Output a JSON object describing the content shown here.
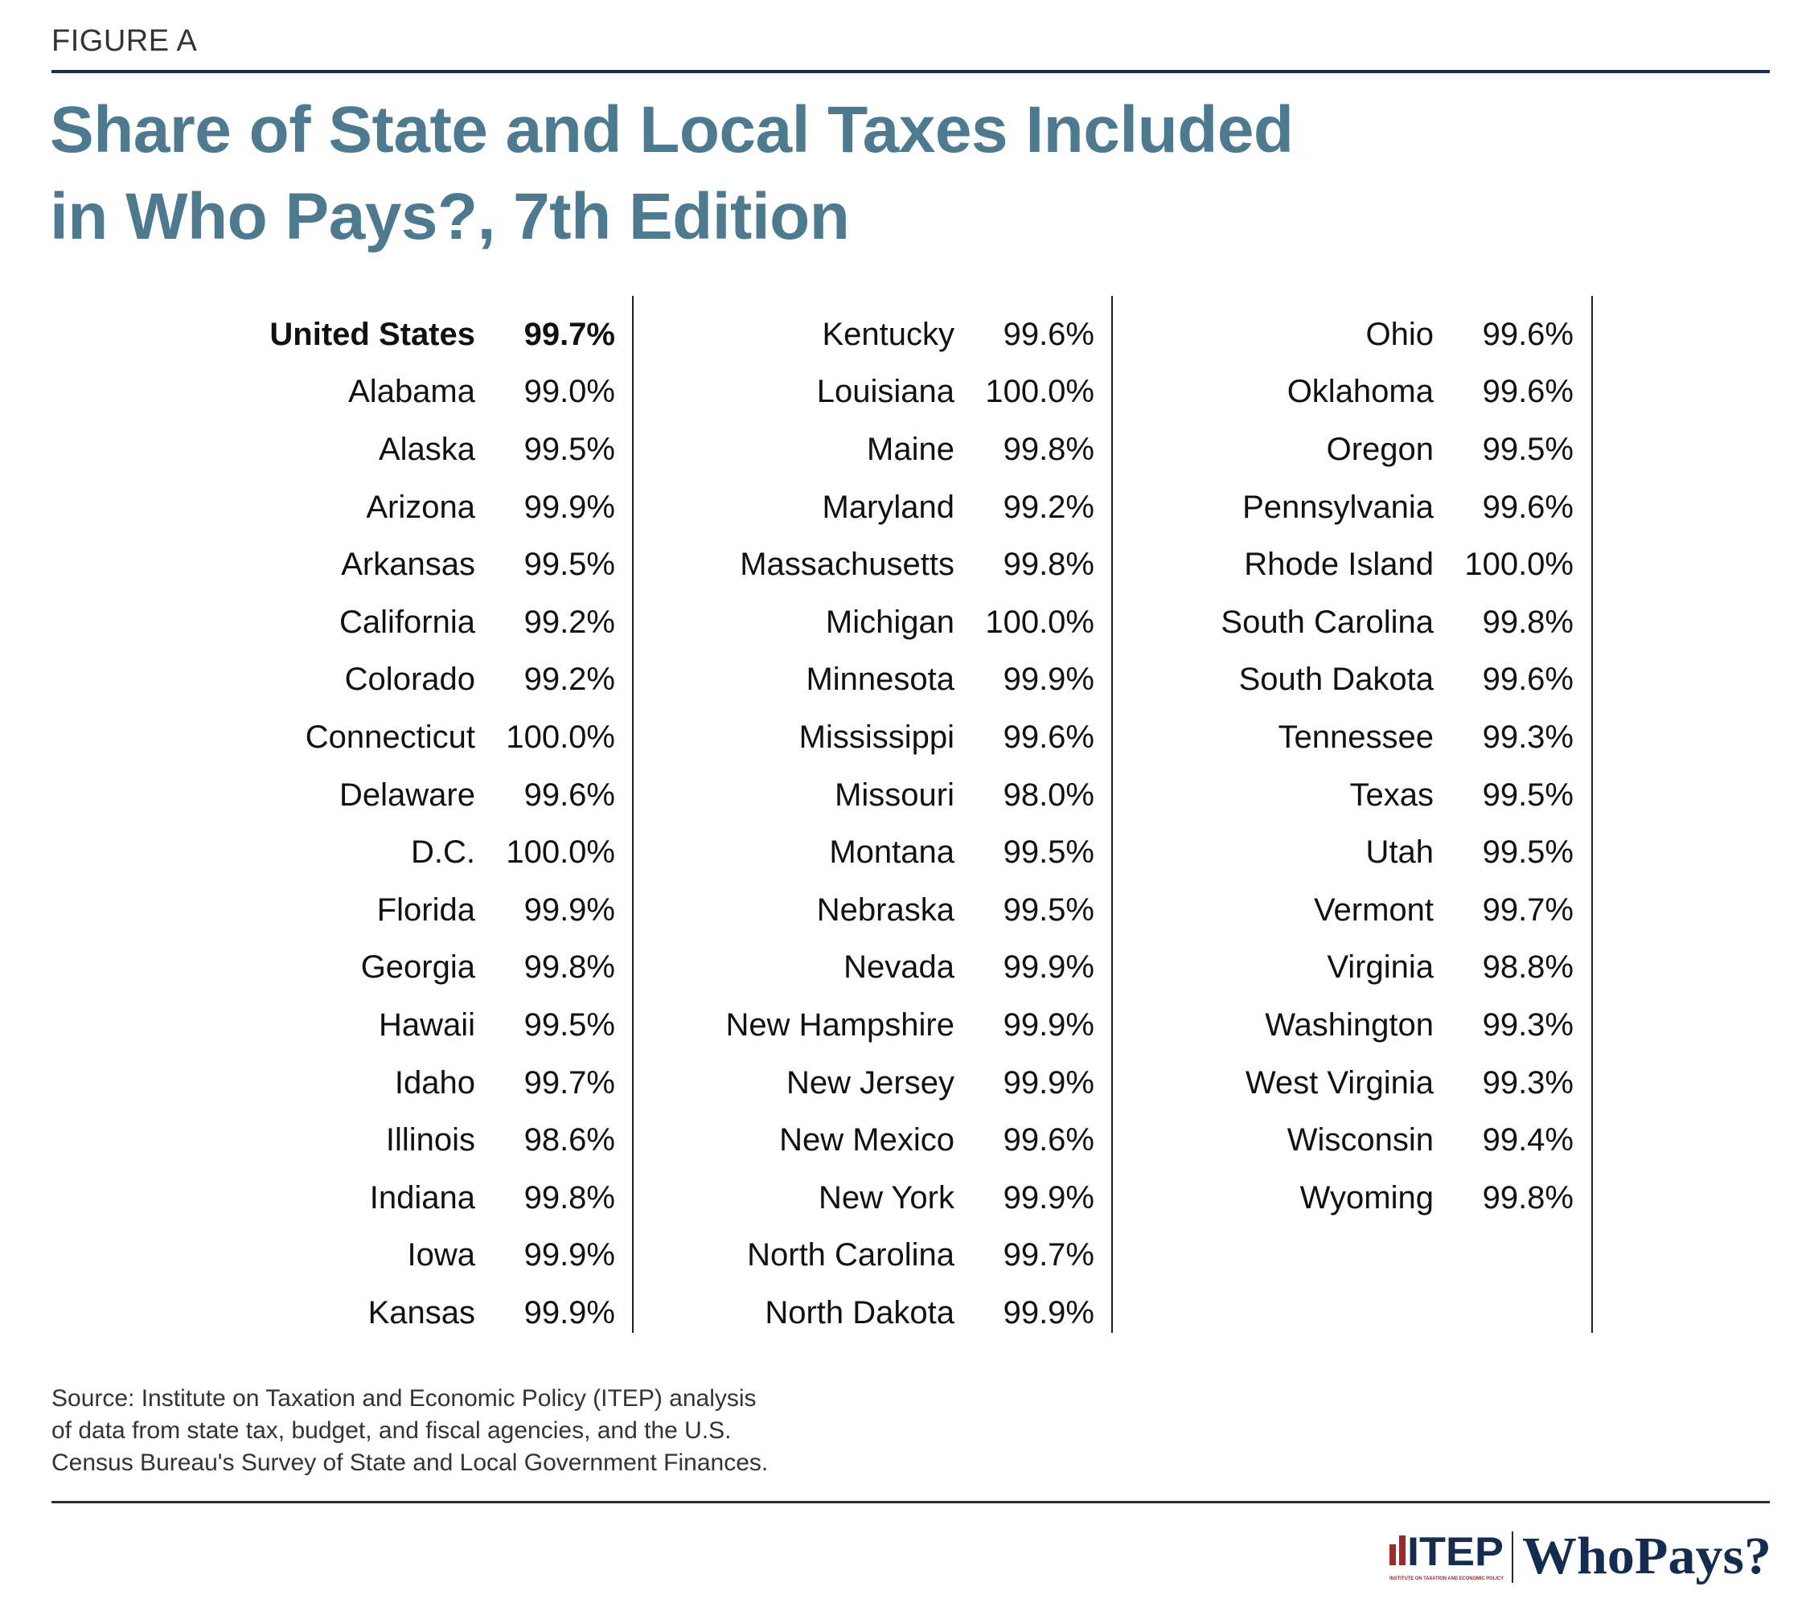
{
  "header": {
    "figure_label": "FIGURE A",
    "title_line1": "Share of State and Local Taxes Included",
    "title_line2": "in Who Pays?, 7th Edition"
  },
  "table": {
    "columns": [
      [
        {
          "name": "United States",
          "value": "99.7%",
          "bold": true
        },
        {
          "name": "Alabama",
          "value": "99.0%"
        },
        {
          "name": "Alaska",
          "value": "99.5%"
        },
        {
          "name": "Arizona",
          "value": "99.9%"
        },
        {
          "name": "Arkansas",
          "value": "99.5%"
        },
        {
          "name": "California",
          "value": "99.2%"
        },
        {
          "name": "Colorado",
          "value": "99.2%"
        },
        {
          "name": "Connecticut",
          "value": "100.0%"
        },
        {
          "name": "Delaware",
          "value": "99.6%"
        },
        {
          "name": "D.C.",
          "value": "100.0%"
        },
        {
          "name": "Florida",
          "value": "99.9%"
        },
        {
          "name": "Georgia",
          "value": "99.8%"
        },
        {
          "name": "Hawaii",
          "value": "99.5%"
        },
        {
          "name": "Idaho",
          "value": "99.7%"
        },
        {
          "name": "Illinois",
          "value": "98.6%"
        },
        {
          "name": "Indiana",
          "value": "99.8%"
        },
        {
          "name": "Iowa",
          "value": "99.9%"
        },
        {
          "name": "Kansas",
          "value": "99.9%"
        }
      ],
      [
        {
          "name": "Kentucky",
          "value": "99.6%"
        },
        {
          "name": "Louisiana",
          "value": "100.0%"
        },
        {
          "name": "Maine",
          "value": "99.8%"
        },
        {
          "name": "Maryland",
          "value": "99.2%"
        },
        {
          "name": "Massachusetts",
          "value": "99.8%"
        },
        {
          "name": "Michigan",
          "value": "100.0%"
        },
        {
          "name": "Minnesota",
          "value": "99.9%"
        },
        {
          "name": "Mississippi",
          "value": "99.6%"
        },
        {
          "name": "Missouri",
          "value": "98.0%"
        },
        {
          "name": "Montana",
          "value": "99.5%"
        },
        {
          "name": "Nebraska",
          "value": "99.5%"
        },
        {
          "name": "Nevada",
          "value": "99.9%"
        },
        {
          "name": "New Hampshire",
          "value": "99.9%"
        },
        {
          "name": "New Jersey",
          "value": "99.9%"
        },
        {
          "name": "New Mexico",
          "value": "99.6%"
        },
        {
          "name": "New York",
          "value": "99.9%"
        },
        {
          "name": "North Carolina",
          "value": "99.7%"
        },
        {
          "name": "North Dakota",
          "value": "99.9%"
        }
      ],
      [
        {
          "name": "Ohio",
          "value": "99.6%"
        },
        {
          "name": "Oklahoma",
          "value": "99.6%"
        },
        {
          "name": "Oregon",
          "value": "99.5%"
        },
        {
          "name": "Pennsylvania",
          "value": "99.6%"
        },
        {
          "name": "Rhode Island",
          "value": "100.0%"
        },
        {
          "name": "South Carolina",
          "value": "99.8%"
        },
        {
          "name": "South Dakota",
          "value": "99.6%"
        },
        {
          "name": "Tennessee",
          "value": "99.3%"
        },
        {
          "name": "Texas",
          "value": "99.5%"
        },
        {
          "name": "Utah",
          "value": "99.5%"
        },
        {
          "name": "Vermont",
          "value": "99.7%"
        },
        {
          "name": "Virginia",
          "value": "98.8%"
        },
        {
          "name": "Washington",
          "value": "99.3%"
        },
        {
          "name": "West Virginia",
          "value": "99.3%"
        },
        {
          "name": "Wisconsin",
          "value": "99.4%"
        },
        {
          "name": "Wyoming",
          "value": "99.8%"
        }
      ]
    ]
  },
  "footer": {
    "source_line1": "Source: Institute on Taxation and Economic Policy (ITEP) analysis",
    "source_line2": "of data from state tax, budget, and fiscal agencies, and the U.S.",
    "source_line3": "Census Bureau's Survey of State and Local Government Finances.",
    "logo_itep": "ITEP",
    "logo_itep_sub": "INSTITUTE ON TAXATION AND ECONOMIC POLICY",
    "logo_whopays": "WhoPays?"
  },
  "colors": {
    "title": "#4e7a90",
    "rule": "#1c2e4a",
    "logo_navy": "#142c4f",
    "logo_red": "#9b2c2c"
  }
}
